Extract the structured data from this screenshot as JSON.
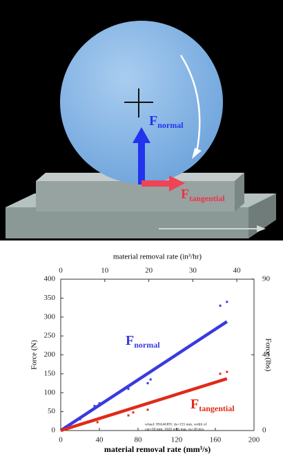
{
  "diagram": {
    "normal_symbol": "F",
    "normal_sub": "normal",
    "tangential_symbol": "F",
    "tangential_sub": "tangential"
  },
  "chart_data": {
    "type": "scatter",
    "xlabel": "material removal rate (mm³/s)",
    "ylabel": "Force (N)",
    "x2label": "material removal rate (in³/hr)",
    "y2label": "Force (lbs)",
    "xlim": [
      0,
      200
    ],
    "xticks": [
      0,
      40,
      80,
      120,
      160,
      200
    ],
    "ylim": [
      0,
      400
    ],
    "yticks": [
      0,
      50,
      100,
      150,
      200,
      250,
      300,
      350,
      400
    ],
    "x2lim": [
      0,
      43.9
    ],
    "x2ticks": [
      0,
      10,
      20,
      30,
      40
    ],
    "y2lim": [
      0,
      89.9
    ],
    "y2ticks": [
      0,
      45,
      90
    ],
    "series": [
      {
        "name": "normal",
        "symbol": "F",
        "color": "#3a3ae0",
        "x": [
          5,
          20,
          35,
          40,
          70,
          90,
          93,
          165,
          172
        ],
        "values": [
          10,
          30,
          65,
          72,
          110,
          125,
          135,
          330,
          340
        ]
      },
      {
        "name": "tangential",
        "symbol": "F",
        "color": "#e02a1a",
        "x": [
          20,
          38,
          70,
          75,
          90,
          165,
          172
        ],
        "values": [
          15,
          22,
          40,
          48,
          55,
          150,
          155
        ]
      }
    ],
    "fits": [
      {
        "color": "#3a3ae0",
        "x": [
          0,
          172
        ],
        "values": [
          0,
          288
        ]
      },
      {
        "color": "#e02a1a",
        "x": [
          0,
          172
        ],
        "values": [
          0,
          137
        ]
      }
    ],
    "note": [
      "wheel: 89A46J8V, ds=155 mm, width of",
      "cut=50 mm, 1020 with mat, vs=30 m/s"
    ]
  }
}
